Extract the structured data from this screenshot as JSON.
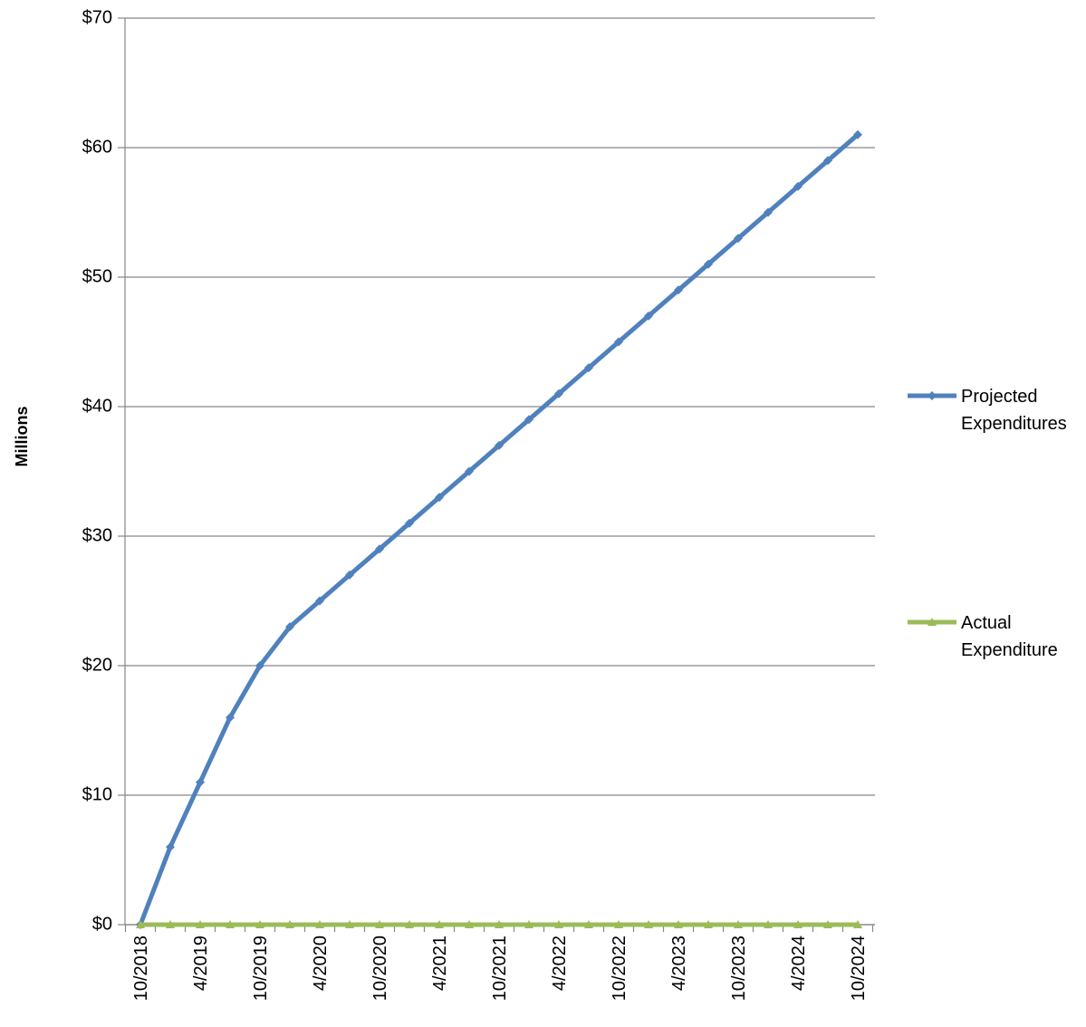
{
  "chart_data": {
    "type": "line",
    "title": "",
    "xlabel": "",
    "ylabel": "Millions",
    "ylim": [
      0,
      70
    ],
    "y_ticks": [
      "$0",
      "$10",
      "$20",
      "$30",
      "$40",
      "$50",
      "$60",
      "$70"
    ],
    "y_tick_values": [
      0,
      10,
      20,
      30,
      40,
      50,
      60,
      70
    ],
    "grid": "horizontal",
    "legend_position": "right",
    "x": [
      "10/2018",
      "1/2019",
      "4/2019",
      "7/2019",
      "10/2019",
      "1/2020",
      "4/2020",
      "7/2020",
      "10/2020",
      "1/2021",
      "4/2021",
      "7/2021",
      "10/2021",
      "1/2022",
      "4/2022",
      "7/2022",
      "10/2022",
      "1/2023",
      "4/2023",
      "7/2023",
      "10/2023",
      "1/2024",
      "4/2024",
      "7/2024",
      "10/2024"
    ],
    "x_tick_labels": [
      "10/2018",
      "4/2019",
      "10/2019",
      "4/2020",
      "10/2020",
      "4/2021",
      "10/2021",
      "4/2022",
      "10/2022",
      "4/2023",
      "10/2023",
      "4/2024",
      "10/2024"
    ],
    "series": [
      {
        "name": "Projected Expenditures",
        "color": "#4F81BD",
        "marker": "diamond",
        "values": [
          0,
          6,
          11,
          16,
          20,
          23,
          25,
          27,
          29,
          31,
          33,
          35,
          37,
          39,
          41,
          43,
          45,
          47,
          49,
          51,
          53,
          55,
          57,
          59,
          61
        ]
      },
      {
        "name": "Actual Expenditure",
        "color": "#9BBB59",
        "marker": "triangle",
        "values": [
          0,
          0,
          0,
          0,
          0,
          0,
          0,
          0,
          0,
          0,
          0,
          0,
          0,
          0,
          0,
          0,
          0,
          0,
          0,
          0,
          0,
          0,
          0,
          0,
          0
        ]
      }
    ]
  }
}
